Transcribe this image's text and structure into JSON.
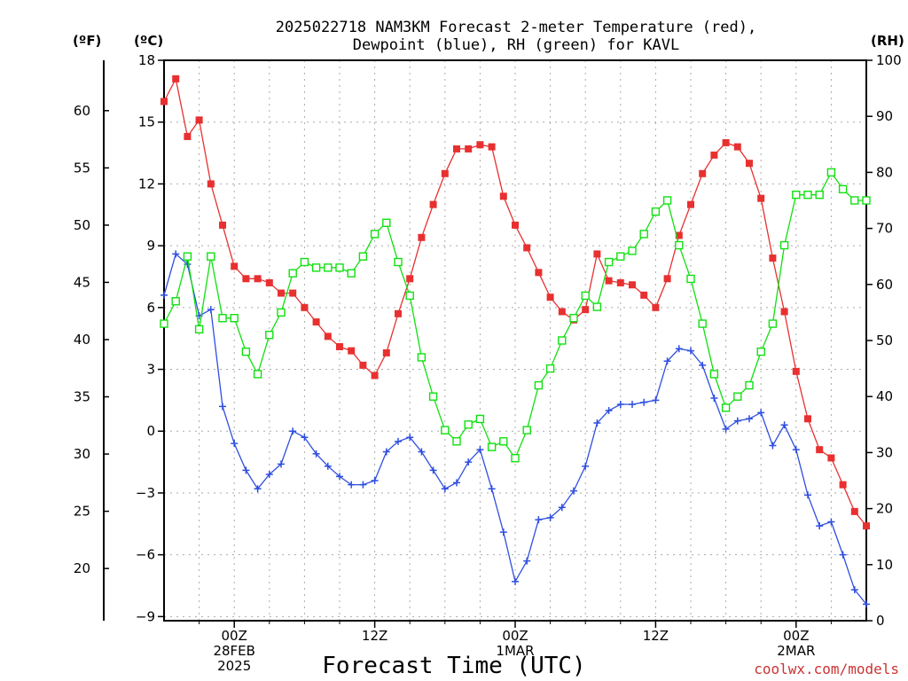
{
  "title_line1": "2025022718 NAM3KM Forecast 2-meter Temperature (red),",
  "title_line2": "Dewpoint (blue), RH (green) for KAVL",
  "unit_f": "(ºF)",
  "unit_c": "(ºC)",
  "unit_rh": "(RH)",
  "xlabel": "Forecast Time (UTC)",
  "credit": "coolwx.com/models",
  "chart_data": {
    "type": "line",
    "title": "2025022718 NAM3KM Forecast 2-meter Temperature (red), Dewpoint (blue), RH (green) for KAVL",
    "xlabel": "Forecast Time (UTC)",
    "x_unit": "forecast hour",
    "x": [
      0,
      1,
      2,
      3,
      4,
      5,
      6,
      7,
      8,
      9,
      10,
      11,
      12,
      13,
      14,
      15,
      16,
      17,
      18,
      19,
      20,
      21,
      22,
      23,
      24,
      25,
      26,
      27,
      28,
      29,
      30,
      31,
      32,
      33,
      34,
      35,
      36,
      37,
      38,
      39,
      40,
      41,
      42,
      43,
      44,
      45,
      46,
      47,
      48,
      49,
      50,
      51,
      52,
      53,
      54,
      55,
      56,
      57,
      58,
      59,
      60
    ],
    "x_range": [
      0,
      60
    ],
    "x_ticks": [
      {
        "x": 6,
        "lines": [
          "00Z",
          "28FEB",
          "2025"
        ]
      },
      {
        "x": 18,
        "lines": [
          "12Z"
        ]
      },
      {
        "x": 30,
        "lines": [
          "00Z",
          "1MAR"
        ]
      },
      {
        "x": 42,
        "lines": [
          "12Z"
        ]
      },
      {
        "x": 54,
        "lines": [
          "00Z",
          "2MAR"
        ]
      }
    ],
    "y_left_c": {
      "range": [
        -9.2,
        18
      ],
      "ticks": [
        18,
        15,
        12,
        9,
        6,
        3,
        0,
        -3,
        -6,
        -9
      ],
      "tick_labels": [
        "18",
        "15",
        "12",
        "9",
        "6",
        "3",
        "0",
        "−3",
        "−6",
        "−9"
      ]
    },
    "y_left_f": {
      "ticks": [
        60,
        55,
        50,
        45,
        40,
        35,
        30,
        25,
        20
      ]
    },
    "y_right_rh": {
      "range": [
        0,
        100
      ],
      "ticks": [
        100,
        90,
        80,
        70,
        60,
        50,
        40,
        30,
        20,
        10,
        0
      ]
    },
    "grid": true,
    "series": [
      {
        "name": "2-meter Temperature",
        "axis": "celsius",
        "color": "#e83030",
        "marker": "filled-square",
        "values": [
          16.0,
          17.1,
          14.3,
          15.1,
          12.0,
          10.0,
          8.0,
          7.4,
          7.4,
          7.2,
          6.7,
          6.7,
          6.0,
          5.3,
          4.6,
          4.1,
          3.9,
          3.2,
          2.7,
          3.8,
          5.7,
          7.4,
          9.4,
          11.0,
          12.5,
          13.7,
          13.7,
          13.9,
          13.8,
          11.4,
          10.0,
          8.9,
          7.7,
          6.5,
          5.8,
          5.4,
          5.9,
          8.6,
          7.3,
          7.2,
          7.1,
          6.6,
          6.0,
          7.4,
          9.5,
          11.0,
          12.5,
          13.4,
          14.0,
          13.8,
          13.0,
          11.3,
          8.4,
          5.8,
          2.9,
          0.6,
          -0.9,
          -1.3,
          -2.6,
          -3.9,
          -4.6
        ]
      },
      {
        "name": "Dewpoint",
        "axis": "celsius",
        "color": "#2e4ee0",
        "marker": "plus",
        "values": [
          6.6,
          8.6,
          8.1,
          5.6,
          5.9,
          1.2,
          -0.6,
          -1.9,
          -2.8,
          -2.1,
          -1.6,
          0.0,
          -0.3,
          -1.1,
          -1.7,
          -2.2,
          -2.6,
          -2.6,
          -2.4,
          -1.0,
          -0.5,
          -0.3,
          -1.0,
          -1.9,
          -2.8,
          -2.5,
          -1.5,
          -0.9,
          -2.8,
          -4.9,
          -7.3,
          -6.3,
          -4.3,
          -4.2,
          -3.7,
          -2.9,
          -1.7,
          0.4,
          1.0,
          1.3,
          1.3,
          1.4,
          1.5,
          3.4,
          4.0,
          3.9,
          3.2,
          1.6,
          0.1,
          0.5,
          0.6,
          0.9,
          -0.7,
          0.3,
          -0.9,
          -3.1,
          -4.6,
          -4.4,
          -6.0,
          -7.7,
          -8.4
        ]
      },
      {
        "name": "RH",
        "axis": "rh",
        "color": "#10e010",
        "marker": "open-square",
        "values": [
          53,
          57,
          65,
          52,
          65,
          54,
          54,
          48,
          44,
          51,
          55,
          62,
          64,
          63,
          63,
          63,
          62,
          65,
          69,
          71,
          64,
          58,
          47,
          40,
          34,
          32,
          35,
          36,
          31,
          32,
          29,
          34,
          42,
          45,
          50,
          54,
          58,
          56,
          64,
          65,
          66,
          69,
          73,
          75,
          67,
          61,
          53,
          44,
          38,
          40,
          42,
          48,
          53,
          67,
          76,
          76,
          76,
          80,
          77,
          75,
          75
        ]
      }
    ]
  }
}
